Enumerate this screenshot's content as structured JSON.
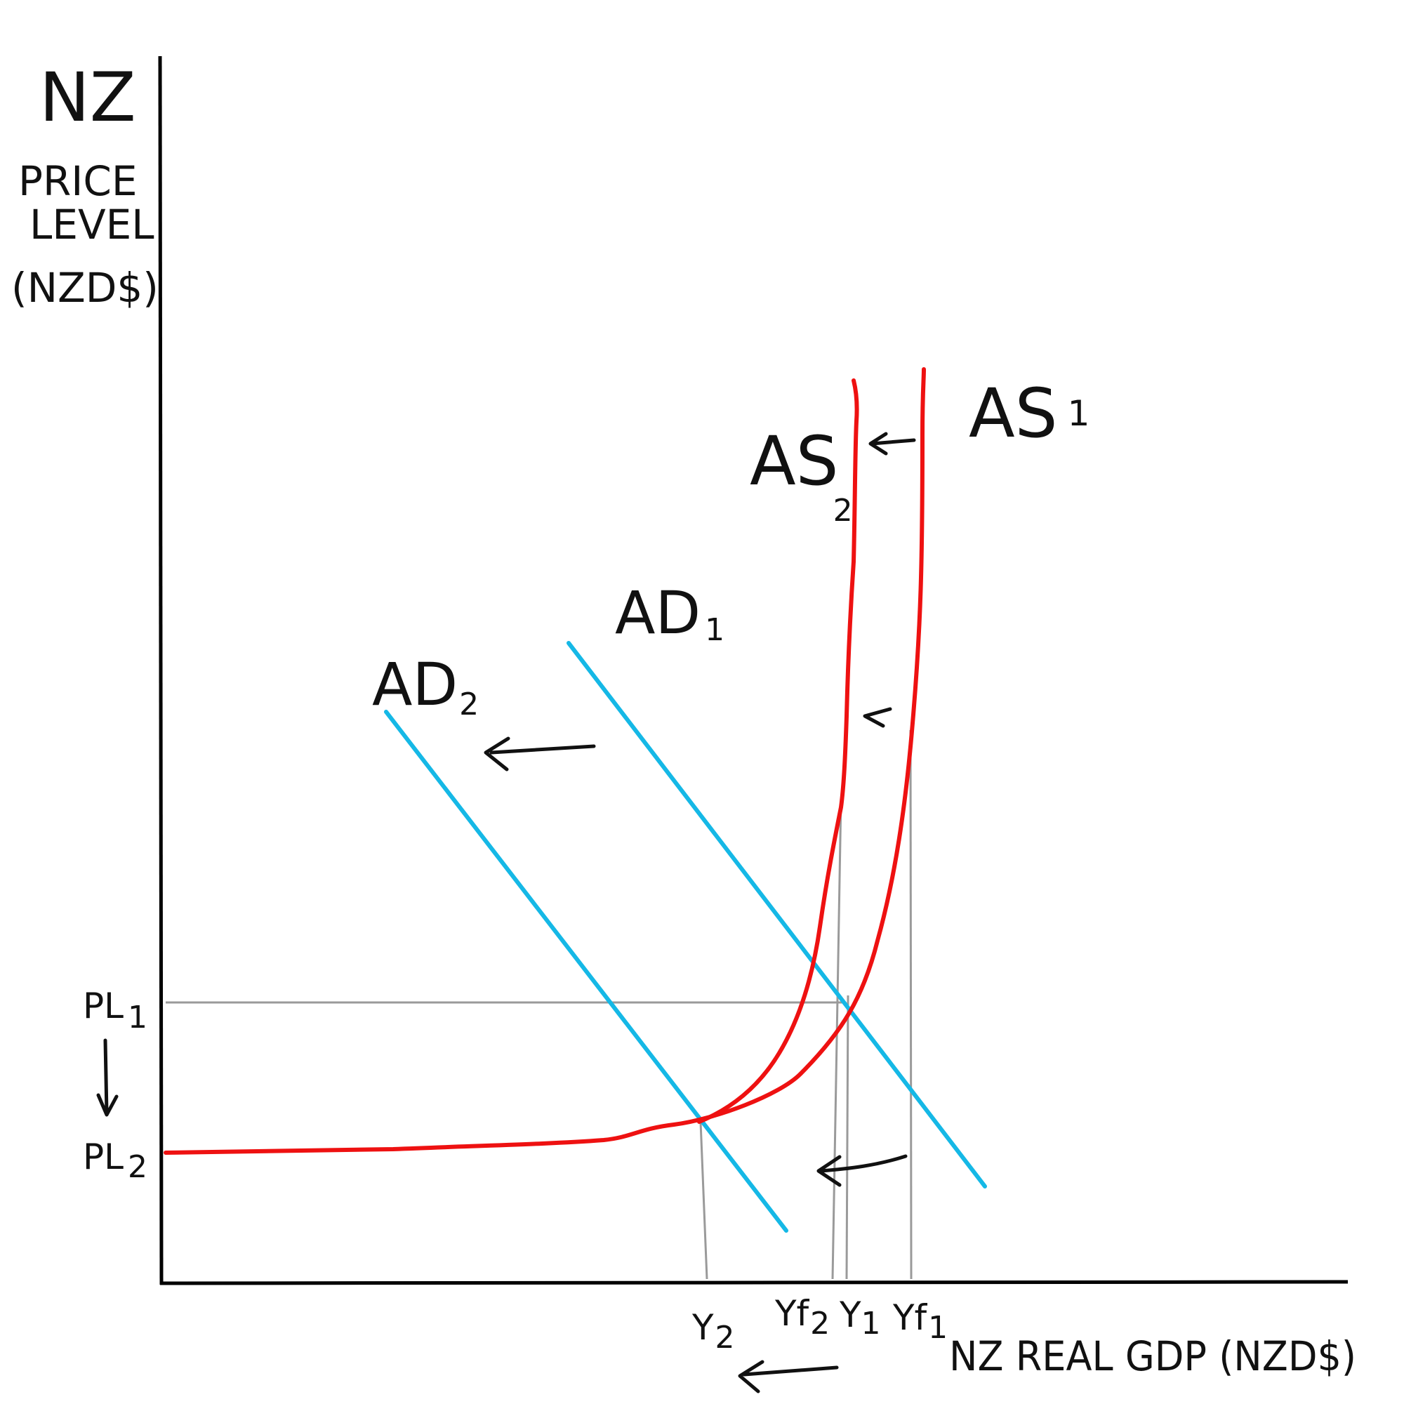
{
  "y_axis": {
    "line1": "NZ",
    "line2": "PRICE",
    "line3": "LEVEL",
    "line4": "(NZD$)"
  },
  "x_axis": {
    "label": "NZ REAL GDP (NZD$)"
  },
  "price_ticks": {
    "pl1": "PL",
    "pl1_sub": "1",
    "pl2": "PL",
    "pl2_sub": "2"
  },
  "gdp_ticks": {
    "y2": "Y",
    "y2_sub": "2",
    "yf2": "Yf",
    "yf2_sub": "2",
    "y1": "Y",
    "y1_sub": "1",
    "yf1": "Yf",
    "yf1_sub": "1"
  },
  "curves": {
    "as1": "AS",
    "as1_sub": "1",
    "as2": "AS",
    "as2_sub": "2",
    "ad1": "AD",
    "ad1_sub": "1",
    "ad2": "AD",
    "ad2_sub": "2"
  },
  "colors": {
    "aggregate_supply": "#ee1111",
    "aggregate_demand": "#15b8e6",
    "guides": "#9a9a9a",
    "axes": "#000000"
  }
}
